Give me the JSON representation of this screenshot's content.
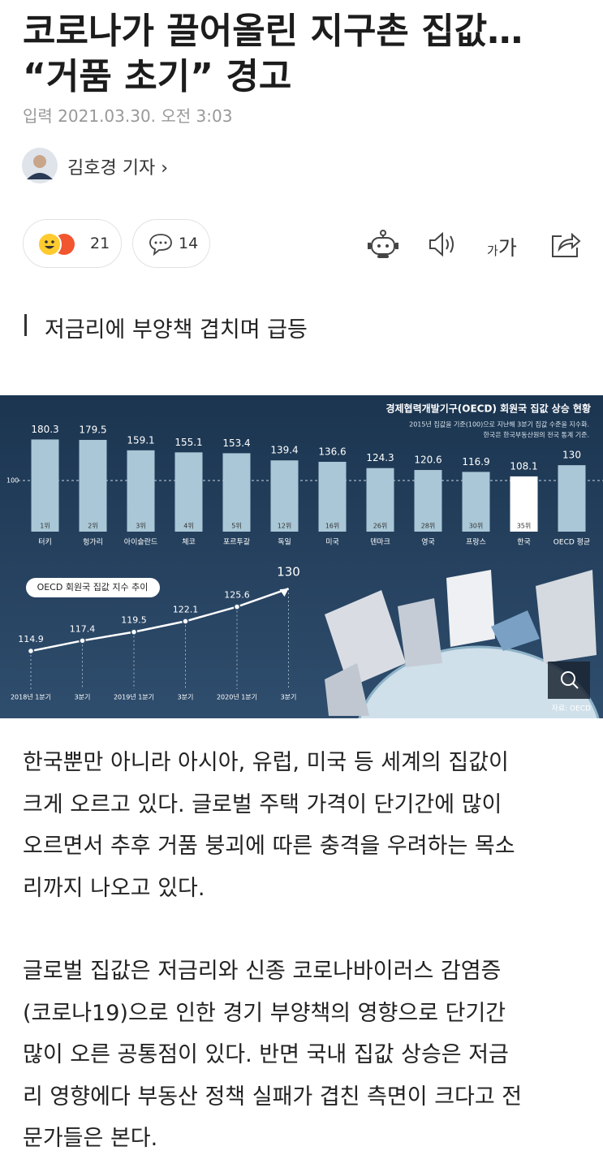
{
  "article": {
    "title_lines": [
      "코로나가 끌어올린 지구촌 집값…",
      "“거품 초기” 경고"
    ],
    "date_label": "입력",
    "date": "2021.03.30. 오전 3:03",
    "reporter": "김호경 기자",
    "reactions": 21,
    "comments": 14,
    "font_small": "가",
    "font_large": "가",
    "subheading": "저금리에 부양책 겹치며 급등"
  },
  "infographic": {
    "title": "경제협력개발기구(OECD) 회원국 집값 상승 현황",
    "notes": [
      "2015년 집값을 기준(100)으로 지난해 3분기 집값 수준을 지수화.",
      "한국은 한국부동산원의 전국 통계 기준."
    ],
    "bar_chart": {
      "type": "bar",
      "categories": [
        "터키",
        "헝가리",
        "아이슬란드",
        "체코",
        "포르투갈",
        "독일",
        "미국",
        "덴마크",
        "영국",
        "프랑스",
        "한국",
        "OECD 평균"
      ],
      "values": [
        180.3,
        179.5,
        159.1,
        155.1,
        153.4,
        139.4,
        136.6,
        124.3,
        120.6,
        116.9,
        108.1,
        130
      ],
      "ranks": [
        "1위",
        "2위",
        "3위",
        "4위",
        "5위",
        "12위",
        "16위",
        "26위",
        "28위",
        "30위",
        "35위",
        null
      ],
      "colors": [
        "#a9c7d6",
        "#a9c7d6",
        "#a9c7d6",
        "#a9c7d6",
        "#a9c7d6",
        "#a9c7d6",
        "#a9c7d6",
        "#a9c7d6",
        "#a9c7d6",
        "#a9c7d6",
        "#ffffff",
        "#a9c7d6"
      ],
      "ylim": [
        0,
        185
      ],
      "yticks": [
        100
      ]
    },
    "line_chart": {
      "type": "line",
      "title": "OECD 회원국 집값 지수 추이",
      "x": [
        "2018년 1분기",
        "3분기",
        "2019년 1분기",
        "3분기",
        "2020년 1분기",
        "3분기"
      ],
      "values": [
        114.9,
        117.4,
        119.5,
        122.1,
        125.6,
        130
      ],
      "color": "#ffffff",
      "ylim": [
        110,
        132
      ]
    },
    "source": "자료: OECD"
  },
  "body": [
    [
      "한국뿐만 아니라 아시아, 유럽, 미국 등 세계의 집값이",
      "크게 오르고 있다. 글로벌 주택 가격이 단기간에 많이",
      "오르면서 추후 거품 붕괴에 따른 충격을 우려하는 목소",
      "리까지 나오고 있다."
    ],
    [
      "글로벌 집값은 저금리와 신종 코로나바이러스 감염증",
      "(코로나19)으로 인한 경기 부양책의 영향으로 단기간",
      "많이 오른 공통점이 있다. 반면 국내 집값 상승은 저금",
      "리 영향에다 부동산 정책 실패가 겹친 측면이 크다고 전",
      "문가들은 본다."
    ]
  ]
}
